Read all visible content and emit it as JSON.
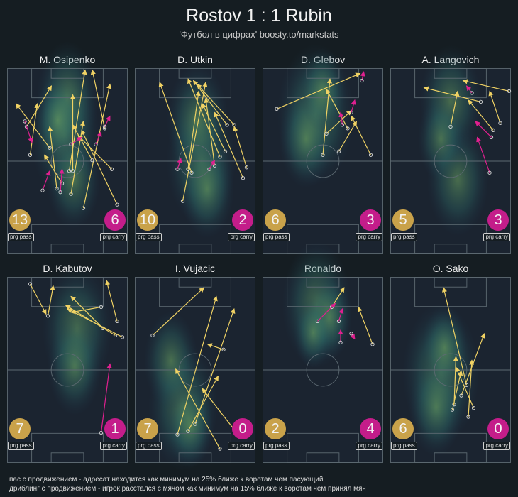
{
  "title": "Rostov 1 : 1 Rubin",
  "subtitle": "'Футбол в цифрах' boosty.to/markstats",
  "legend": {
    "pass": "пас с продвижением - адресат находится как минимум на 25% ближе к воротам чем пасующий",
    "carry": "дриблинг с продвижением - игрок расстался с мячом как минимум на 15% ближе к воротам чем принял мяч"
  },
  "labels": {
    "pass": "prg pass",
    "carry": "prg carry"
  },
  "colors": {
    "background": "#151d22",
    "pass": "#f0d264",
    "carry": "#e0208f",
    "pass_badge": "#c9a24a",
    "carry_badge": "#c41d8a"
  },
  "chart_data": {
    "type": "scatter",
    "title": "Rostov 1 : 1 Rubin",
    "pitch": {
      "length": 105,
      "width": 68,
      "attack_direction": "up"
    },
    "players": [
      {
        "name": "M. Osipenko",
        "prg_pass": "13",
        "prg_carry": "6",
        "heat": [
          [
            48,
            64,
            18
          ],
          [
            50,
            84,
            16
          ],
          [
            55,
            40,
            14
          ],
          [
            42,
            72,
            12
          ]
        ],
        "passes": [
          [
            11,
            72,
            25,
            95
          ],
          [
            13,
            56,
            17,
            85
          ],
          [
            24,
            60,
            5,
            85
          ],
          [
            28,
            37,
            24,
            72
          ],
          [
            31,
            40,
            21,
            56
          ],
          [
            35,
            47,
            44,
            104
          ],
          [
            36,
            34,
            43,
            75
          ],
          [
            37,
            47,
            37,
            90
          ],
          [
            43,
            26,
            58,
            96
          ],
          [
            48,
            53,
            37,
            73
          ],
          [
            55,
            71,
            48,
            104
          ],
          [
            59,
            48,
            40,
            67
          ],
          [
            62,
            28,
            42,
            70
          ]
        ],
        "carries": [
          [
            10,
            75,
            14,
            63
          ],
          [
            20,
            36,
            24,
            47
          ],
          [
            30,
            35,
            31,
            48
          ],
          [
            36,
            62,
            42,
            66
          ],
          [
            50,
            62,
            53,
            69
          ],
          [
            55,
            72,
            58,
            78
          ]
        ]
      },
      {
        "name": "D. Utkin",
        "prg_pass": "10",
        "prg_carry": "2",
        "heat": [
          [
            55,
            50,
            18
          ],
          [
            52,
            72,
            16
          ],
          [
            60,
            35,
            14
          ]
        ],
        "passes": [
          [
            27,
            30,
            40,
            97
          ],
          [
            30,
            48,
            36,
            92
          ],
          [
            32,
            46,
            14,
            97
          ],
          [
            45,
            50,
            40,
            88
          ],
          [
            48,
            55,
            30,
            99
          ],
          [
            51,
            58,
            38,
            85
          ],
          [
            52,
            73,
            33,
            98
          ],
          [
            56,
            73,
            35,
            96
          ],
          [
            61,
            43,
            45,
            80
          ],
          [
            63,
            49,
            56,
            72
          ]
        ],
        "carries": [
          [
            24,
            48,
            26,
            54
          ],
          [
            42,
            48,
            45,
            53
          ]
        ]
      },
      {
        "name": "D. Glebov",
        "prg_pass": "6",
        "prg_carry": "3",
        "heat": [
          [
            44,
            75,
            20
          ],
          [
            36,
            62,
            14
          ],
          [
            50,
            88,
            12
          ]
        ],
        "passes": [
          [
            8,
            82,
            55,
            102
          ],
          [
            34,
            56,
            38,
            99
          ],
          [
            36,
            68,
            50,
            81
          ],
          [
            48,
            71,
            36,
            93
          ],
          [
            43,
            58,
            53,
            75
          ],
          [
            61,
            56,
            50,
            78
          ]
        ],
        "carries": [
          [
            45,
            73,
            44,
            80
          ],
          [
            50,
            80,
            52,
            87
          ],
          [
            56,
            98,
            57,
            103
          ]
        ]
      },
      {
        "name": "A. Langovich",
        "prg_pass": "5",
        "prg_carry": "3",
        "heat": [
          [
            56,
            40,
            16
          ],
          [
            50,
            82,
            16
          ],
          [
            42,
            62,
            12
          ]
        ],
        "passes": [
          [
            34,
            72,
            38,
            92
          ],
          [
            51,
            86,
            19,
            94
          ],
          [
            58,
            70,
            44,
            87
          ],
          [
            62,
            74,
            56,
            92
          ],
          [
            67,
            92,
            41,
            98
          ]
        ],
        "carries": [
          [
            46,
            91,
            43,
            95
          ],
          [
            57,
            66,
            48,
            75
          ],
          [
            56,
            46,
            49,
            66
          ]
        ]
      },
      {
        "name": "D. Kabutov",
        "prg_pass": "7",
        "prg_carry": "1",
        "heat": [
          [
            58,
            72,
            18
          ],
          [
            56,
            52,
            14
          ]
        ],
        "passes": [
          [
            13,
            101,
            22,
            84
          ],
          [
            23,
            83,
            26,
            100
          ],
          [
            53,
            88,
            36,
            85
          ],
          [
            54,
            76,
            36,
            94
          ],
          [
            61,
            72,
            33,
            89
          ],
          [
            65,
            71,
            34,
            87
          ],
          [
            62,
            80,
            56,
            103
          ]
        ],
        "carries": [
          [
            53,
            17,
            58,
            56
          ]
        ]
      },
      {
        "name": "I. Vujacic",
        "prg_pass": "7",
        "prg_carry": "0",
        "heat": [
          [
            40,
            30,
            18
          ],
          [
            30,
            55,
            14
          ],
          [
            46,
            20,
            12
          ]
        ],
        "passes": [
          [
            10,
            72,
            39,
            99
          ],
          [
            24,
            16,
            46,
            94
          ],
          [
            30,
            18,
            47,
            49
          ],
          [
            34,
            22,
            56,
            87
          ],
          [
            48,
            8,
            23,
            53
          ],
          [
            50,
            64,
            41,
            67
          ],
          [
            59,
            15,
            38,
            42
          ]
        ],
        "carries": []
      },
      {
        "name": "Ronaldo",
        "prg_pass": "2",
        "prg_carry": "4",
        "heat": [
          [
            45,
            85,
            18
          ],
          [
            55,
            78,
            12
          ],
          [
            42,
            70,
            10
          ]
        ],
        "passes": [
          [
            39,
            88,
            46,
            99
          ],
          [
            62,
            67,
            54,
            88
          ]
        ],
        "carries": [
          [
            31,
            80,
            41,
            90
          ],
          [
            43,
            80,
            45,
            87
          ],
          [
            44,
            68,
            44,
            75
          ],
          [
            50,
            73,
            52,
            70
          ]
        ]
      },
      {
        "name": "O. Sako",
        "prg_pass": "6",
        "prg_carry": "0",
        "heat": [
          [
            42,
            48,
            20
          ],
          [
            38,
            30,
            14
          ],
          [
            45,
            62,
            12
          ]
        ],
        "passes": [
          [
            35,
            30,
            40,
            52
          ],
          [
            36,
            33,
            37,
            60
          ],
          [
            40,
            38,
            53,
            73
          ],
          [
            43,
            44,
            30,
            99
          ],
          [
            44,
            26,
            46,
            58
          ],
          [
            47,
            31,
            37,
            54
          ]
        ],
        "carries": []
      }
    ]
  }
}
